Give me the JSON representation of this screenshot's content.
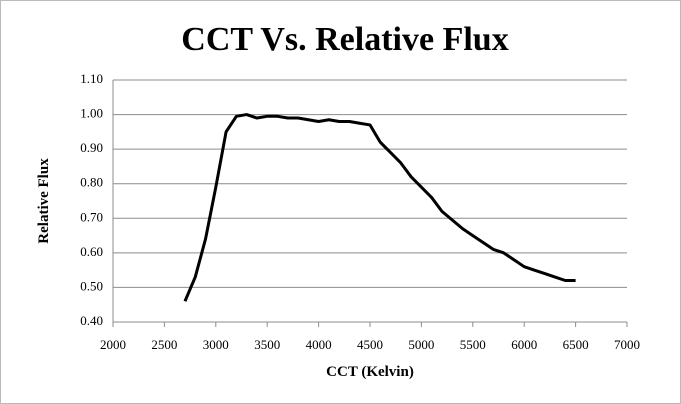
{
  "chart_data": {
    "type": "line",
    "title": "CCT Vs. Relative Flux",
    "x_label": "CCT (Kelvin)",
    "y_label": "Relative Flux",
    "x": [
      2700,
      2800,
      2900,
      3000,
      3100,
      3200,
      3300,
      3400,
      3500,
      3600,
      3700,
      3800,
      3900,
      4000,
      4100,
      4200,
      4300,
      4400,
      4500,
      4600,
      4700,
      4800,
      4900,
      5000,
      5100,
      5200,
      5300,
      5400,
      5500,
      5600,
      5700,
      5800,
      5900,
      6000,
      6100,
      6200,
      6300,
      6400,
      6500
    ],
    "series": [
      {
        "name": "Relative Flux",
        "color": "#000000",
        "values": [
          0.46,
          0.53,
          0.64,
          0.79,
          0.95,
          0.995,
          1.0,
          0.99,
          0.995,
          0.995,
          0.99,
          0.99,
          0.985,
          0.98,
          0.985,
          0.98,
          0.98,
          0.975,
          0.97,
          0.92,
          0.89,
          0.86,
          0.82,
          0.79,
          0.76,
          0.72,
          0.695,
          0.67,
          0.65,
          0.63,
          0.61,
          0.6,
          0.58,
          0.56,
          0.55,
          0.54,
          0.53,
          0.52,
          0.52
        ]
      }
    ],
    "xlim": [
      2000,
      7000
    ],
    "xticks": [
      2000,
      2500,
      3000,
      3500,
      4000,
      4500,
      5000,
      5500,
      6000,
      6500,
      7000
    ],
    "ylim": [
      0.4,
      1.1
    ],
    "yticks": [
      {
        "value": 0.4,
        "label": "0.40"
      },
      {
        "value": 0.5,
        "label": "0.50"
      },
      {
        "value": 0.6,
        "label": "0.60"
      },
      {
        "value": 0.7,
        "label": "0.70"
      },
      {
        "value": 0.8,
        "label": "0.80"
      },
      {
        "value": 0.9,
        "label": "0.90"
      },
      {
        "value": 1.0,
        "label": "1.00"
      },
      {
        "value": 1.1,
        "label": "1.10"
      }
    ],
    "grid": true
  }
}
